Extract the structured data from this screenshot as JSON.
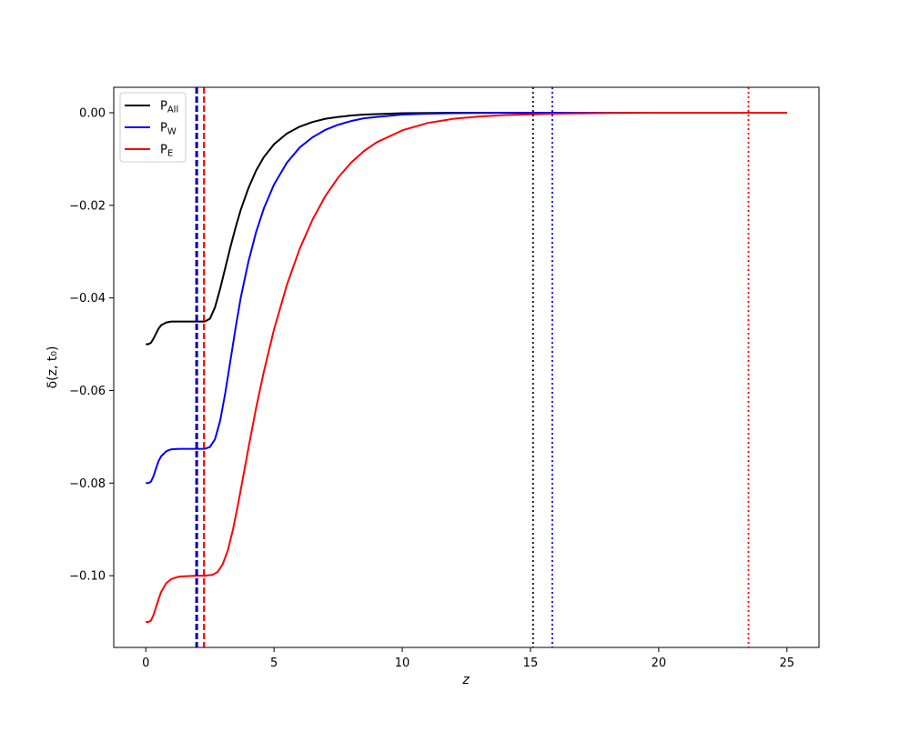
{
  "chart_data": {
    "type": "line",
    "xlabel": "z",
    "ylabel": "δ(z, t₀)",
    "xlim": [
      -1.25,
      26.25
    ],
    "ylim": [
      -0.1155,
      0.0055
    ],
    "xticks": [
      0,
      5,
      10,
      15,
      20,
      25
    ],
    "yticks": [
      -0.1,
      -0.08,
      -0.06,
      -0.04,
      -0.02,
      0.0
    ],
    "xtick_labels": [
      "0",
      "5",
      "10",
      "15",
      "20",
      "25"
    ],
    "ytick_labels": [
      "−0.10",
      "−0.08",
      "−0.06",
      "−0.04",
      "−0.02",
      "0.00"
    ],
    "grid": false,
    "legend_position": "top-left",
    "series": [
      {
        "name": "P",
        "subscript": "All",
        "color": "#000000",
        "x": [
          0,
          0.1,
          0.2,
          0.3,
          0.4,
          0.5,
          0.6,
          0.8,
          1.0,
          1.3,
          1.6,
          2.0,
          2.3,
          2.5,
          2.7,
          2.9,
          3.1,
          3.3,
          3.5,
          3.7,
          4.0,
          4.3,
          4.6,
          5.0,
          5.5,
          6.0,
          6.5,
          7.0,
          7.5,
          8.0,
          8.5,
          9.0,
          10.0,
          11.0,
          12.0,
          14.0,
          16.0,
          18.0,
          20.0,
          22.0,
          25.0
        ],
        "y": [
          -0.05,
          -0.05,
          -0.0497,
          -0.0488,
          -0.0477,
          -0.0466,
          -0.0459,
          -0.0453,
          -0.0451,
          -0.0451,
          -0.0451,
          -0.0451,
          -0.0451,
          -0.0445,
          -0.042,
          -0.038,
          -0.0335,
          -0.029,
          -0.0248,
          -0.021,
          -0.0163,
          -0.0125,
          -0.0096,
          -0.0068,
          -0.0045,
          -0.003,
          -0.002,
          -0.0013,
          -0.0009,
          -0.0006,
          -0.0004,
          -0.0003,
          -0.0001,
          -5e-05,
          0.0,
          0.0,
          0.0,
          0.0,
          0.0,
          0.0,
          0.0
        ]
      },
      {
        "name": "P",
        "subscript": "W",
        "color": "#0000ff",
        "x": [
          0,
          0.1,
          0.2,
          0.3,
          0.4,
          0.5,
          0.6,
          0.8,
          1.0,
          1.3,
          1.6,
          2.0,
          2.3,
          2.5,
          2.7,
          2.9,
          3.1,
          3.3,
          3.5,
          3.7,
          4.0,
          4.3,
          4.6,
          5.0,
          5.5,
          6.0,
          6.5,
          7.0,
          7.5,
          8.0,
          8.5,
          9.0,
          10.0,
          11.0,
          12.0,
          13.0,
          14.0,
          16.0,
          18.0,
          20.0,
          22.0,
          25.0
        ],
        "y": [
          -0.08,
          -0.08,
          -0.0797,
          -0.0785,
          -0.0768,
          -0.0752,
          -0.0742,
          -0.0731,
          -0.0727,
          -0.0726,
          -0.0726,
          -0.0726,
          -0.0726,
          -0.0722,
          -0.0705,
          -0.0665,
          -0.0605,
          -0.0535,
          -0.0465,
          -0.04,
          -0.0322,
          -0.0258,
          -0.0207,
          -0.0155,
          -0.0108,
          -0.0075,
          -0.0053,
          -0.0037,
          -0.0026,
          -0.0018,
          -0.0012,
          -0.0009,
          -0.0004,
          -0.0002,
          -0.0001,
          -5e-05,
          0.0,
          0.0,
          0.0,
          0.0,
          0.0,
          0.0
        ]
      },
      {
        "name": "P",
        "subscript": "E",
        "color": "#ff0000",
        "x": [
          0,
          0.1,
          0.2,
          0.3,
          0.4,
          0.5,
          0.6,
          0.8,
          1.0,
          1.3,
          1.6,
          2.0,
          2.3,
          2.6,
          2.8,
          3.0,
          3.2,
          3.4,
          3.6,
          3.8,
          4.0,
          4.3,
          4.6,
          5.0,
          5.5,
          6.0,
          6.5,
          7.0,
          7.5,
          8.0,
          8.5,
          9.0,
          10.0,
          11.0,
          12.0,
          13.0,
          14.0,
          16.0,
          18.0,
          20.0,
          22.0,
          25.0
        ],
        "y": [
          -0.11,
          -0.11,
          -0.1097,
          -0.1085,
          -0.1068,
          -0.105,
          -0.1035,
          -0.1016,
          -0.1007,
          -0.1002,
          -0.1001,
          -0.1,
          -0.1,
          -0.0998,
          -0.0992,
          -0.0975,
          -0.0945,
          -0.09,
          -0.0845,
          -0.0785,
          -0.0725,
          -0.0638,
          -0.056,
          -0.0468,
          -0.0372,
          -0.0294,
          -0.0231,
          -0.018,
          -0.014,
          -0.0108,
          -0.0083,
          -0.0064,
          -0.0038,
          -0.0022,
          -0.0013,
          -0.0008,
          -0.0005,
          -0.0002,
          -5e-05,
          0.0,
          0.0,
          0.0
        ]
      }
    ],
    "vlines": [
      {
        "x": 1.97,
        "color": "#000000",
        "style": "dashed"
      },
      {
        "x": 2.0,
        "color": "#0000ff",
        "style": "dashed"
      },
      {
        "x": 2.27,
        "color": "#ff0000",
        "style": "dashed"
      },
      {
        "x": 15.1,
        "color": "#000000",
        "style": "dotted"
      },
      {
        "x": 15.85,
        "color": "#0000ff",
        "style": "dotted"
      },
      {
        "x": 23.5,
        "color": "#ff0000",
        "style": "dotted"
      }
    ]
  }
}
